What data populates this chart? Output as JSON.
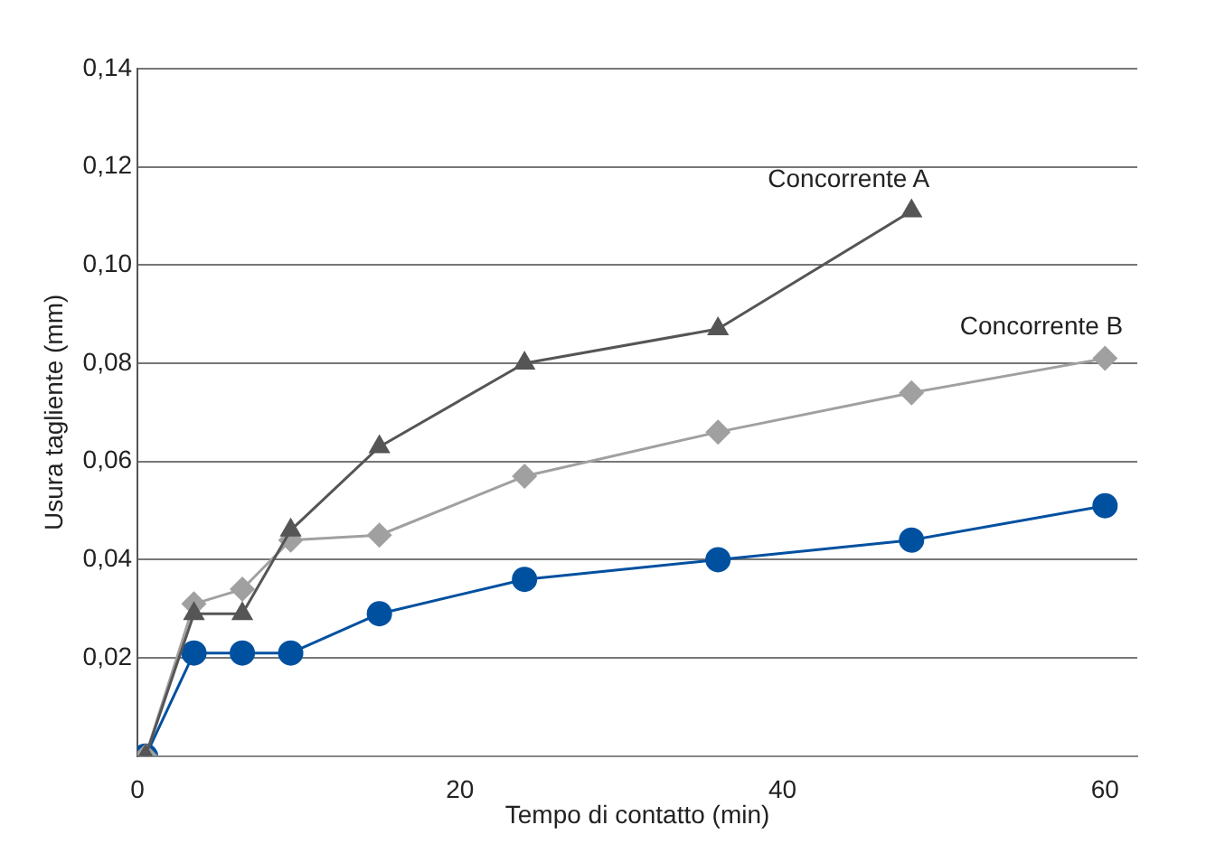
{
  "chart_data": {
    "type": "line",
    "xlabel": "Tempo di contatto (min)",
    "ylabel": "Usura tagliente (mm)",
    "xlim": [
      0,
      62
    ],
    "xticks": [
      0,
      20,
      40,
      60
    ],
    "ylim": [
      0,
      0.14
    ],
    "yticks": [
      {
        "value": 0,
        "label": null
      },
      {
        "value": 0.02,
        "label": "0,02"
      },
      {
        "value": 0.04,
        "label": "0,04"
      },
      {
        "value": 0.06,
        "label": "0,06"
      },
      {
        "value": 0.08,
        "label": "0,08"
      },
      {
        "value": 0.1,
        "label": "0,10"
      },
      {
        "value": 0.12,
        "label": "0,12"
      },
      {
        "value": 0.14,
        "label": "0,14"
      }
    ],
    "grid": "y",
    "legend": false,
    "series": [
      {
        "name": "Concorrente A",
        "color": "#555555",
        "marker": "triangle",
        "x": [
          0.5,
          3.5,
          6.5,
          9.5,
          15,
          24,
          36,
          48
        ],
        "values": [
          0,
          0.029,
          0.029,
          0.046,
          0.063,
          0.08,
          0.087,
          0.111
        ]
      },
      {
        "name": "Concorrente B",
        "color": "#a0a0a0",
        "marker": "diamond",
        "x": [
          0.5,
          3.5,
          6.5,
          9.5,
          15,
          24,
          36,
          48,
          60
        ],
        "values": [
          0,
          0.031,
          0.034,
          0.044,
          0.045,
          0.057,
          0.066,
          0.074,
          0.081
        ]
      },
      {
        "color": "#0050a0",
        "marker": "circle",
        "x": [
          0.5,
          3.5,
          6.5,
          9.5,
          15,
          24,
          36,
          48,
          60
        ],
        "values": [
          0,
          0.021,
          0.021,
          0.021,
          0.029,
          0.036,
          0.04,
          0.044,
          0.051
        ]
      }
    ]
  }
}
